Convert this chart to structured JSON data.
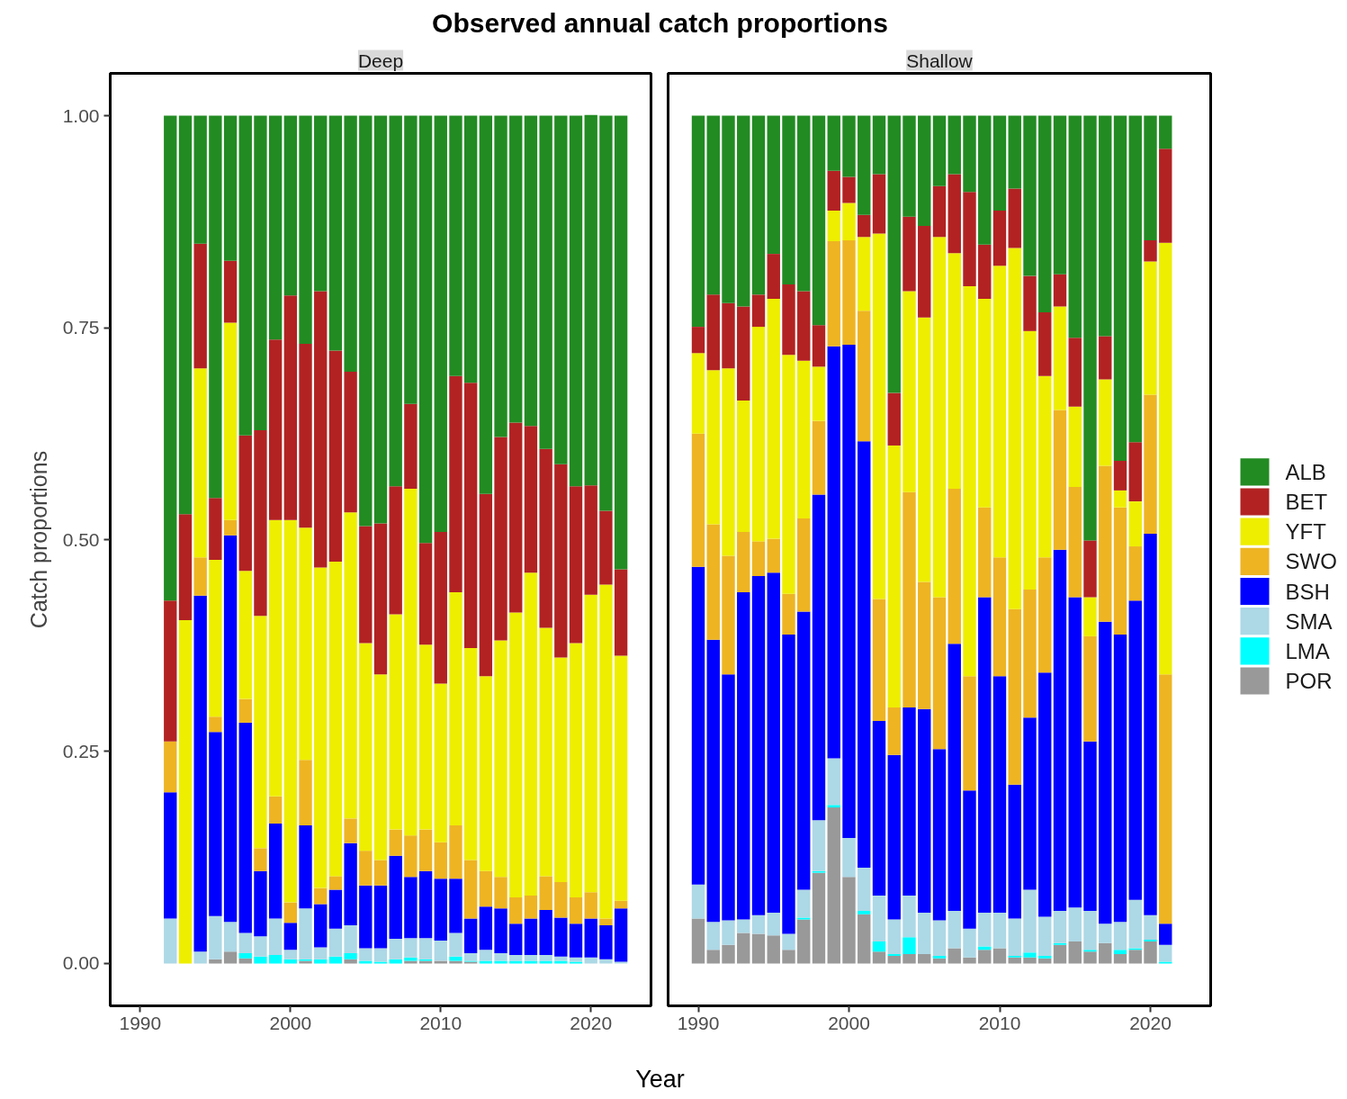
{
  "chart_data": [
    {
      "type": "bar",
      "stacked": true,
      "title": "Observed annual catch proportions",
      "subtitle": "Deep",
      "xlabel": "Year",
      "ylabel": "Catch proportions",
      "legend": "right",
      "x": [
        1992,
        1993,
        1994,
        1995,
        1996,
        1997,
        1998,
        1999,
        2000,
        2001,
        2002,
        2003,
        2004,
        2005,
        2006,
        2007,
        2008,
        2009,
        2010,
        2011,
        2012,
        2013,
        2014,
        2015,
        2016,
        2017,
        2018,
        2019,
        2020,
        2021,
        2022
      ],
      "xlim": [
        1988,
        2024
      ],
      "xticks": [
        1990,
        2000,
        2010,
        2020
      ],
      "ylim": [
        -0.05,
        1.05
      ],
      "yticks": [
        {
          "value": 0,
          "label": "0.00"
        },
        {
          "value": 0.25,
          "label": "0.25"
        },
        {
          "value": 0.5,
          "label": "0.50"
        },
        {
          "value": 0.75,
          "label": "0.75"
        },
        {
          "value": 1,
          "label": "1.00"
        }
      ],
      "series": [
        {
          "name": "POR",
          "color": "#999999",
          "values": [
            0,
            0,
            0,
            0.005,
            0.014,
            0.006,
            0,
            0,
            0,
            0.003,
            0,
            0,
            0.005,
            0,
            0,
            0,
            0.003,
            0.003,
            0.003,
            0.003,
            0.002,
            0,
            0,
            0,
            0,
            0,
            0,
            0,
            0,
            0,
            0
          ]
        },
        {
          "name": "LMA",
          "color": "#00ffff",
          "values": [
            0,
            0,
            0,
            0,
            0,
            0.006,
            0.008,
            0.01,
            0.005,
            0.002,
            0.005,
            0.008,
            0.007,
            0.003,
            0.002,
            0.005,
            0.004,
            0.002,
            0,
            0.005,
            0.001,
            0.003,
            0.003,
            0.003,
            0.003,
            0.003,
            0.003,
            0.002,
            0,
            0,
            0
          ]
        },
        {
          "name": "SMA",
          "color": "#add8e6",
          "values": [
            0.053,
            0,
            0.014,
            0.051,
            0.035,
            0.024,
            0.024,
            0.043,
            0.011,
            0.06,
            0.014,
            0.033,
            0.033,
            0.015,
            0.016,
            0.024,
            0.023,
            0.025,
            0.024,
            0.028,
            0.009,
            0.013,
            0.009,
            0.007,
            0.007,
            0.007,
            0.005,
            0.005,
            0.007,
            0.005,
            0.002
          ]
        },
        {
          "name": "BSH",
          "color": "#0000ff",
          "values": [
            0.149,
            0,
            0.42,
            0.217,
            0.456,
            0.248,
            0.077,
            0.112,
            0.032,
            0.098,
            0.051,
            0.046,
            0.097,
            0.074,
            0.074,
            0.098,
            0.072,
            0.079,
            0.073,
            0.064,
            0.041,
            0.051,
            0.053,
            0.037,
            0.043,
            0.053,
            0.046,
            0.04,
            0.046,
            0.04,
            0.063
          ]
        },
        {
          "name": "SWO",
          "color": "#eeb422",
          "values": [
            0.06,
            0,
            0.045,
            0.018,
            0.018,
            0.028,
            0.027,
            0.032,
            0.024,
            0.077,
            0.019,
            0.016,
            0.029,
            0.041,
            0.03,
            0.031,
            0.049,
            0.049,
            0.043,
            0.063,
            0.069,
            0.042,
            0.037,
            0.031,
            0.027,
            0.04,
            0.042,
            0.031,
            0.031,
            0.008,
            0.009
          ]
        },
        {
          "name": "YFT",
          "color": "#eeee00",
          "values": [
            0,
            0.405,
            0.223,
            0.185,
            0.233,
            0.151,
            0.274,
            0.326,
            0.451,
            0.274,
            0.378,
            0.371,
            0.361,
            0.245,
            0.219,
            0.254,
            0.409,
            0.218,
            0.187,
            0.275,
            0.25,
            0.23,
            0.279,
            0.336,
            0.381,
            0.293,
            0.265,
            0.3,
            0.351,
            0.394,
            0.289
          ]
        },
        {
          "name": "BET",
          "color": "#b22222",
          "values": [
            0.166,
            0.125,
            0.147,
            0.073,
            0.073,
            0.16,
            0.219,
            0.213,
            0.265,
            0.217,
            0.326,
            0.249,
            0.166,
            0.138,
            0.178,
            0.151,
            0.1,
            0.12,
            0.179,
            0.255,
            0.313,
            0.215,
            0.24,
            0.224,
            0.173,
            0.211,
            0.228,
            0.185,
            0.129,
            0.087,
            0.102
          ]
        },
        {
          "name": "ALB",
          "color": "#228b22",
          "values": [
            0.572,
            0.47,
            0.151,
            0.451,
            0.171,
            0.377,
            0.371,
            0.264,
            0.212,
            0.269,
            0.207,
            0.277,
            0.302,
            0.484,
            0.481,
            0.437,
            0.34,
            0.504,
            0.491,
            0.307,
            0.315,
            0.446,
            0.379,
            0.362,
            0.366,
            0.393,
            0.411,
            0.437,
            0.437,
            0.466,
            0.535
          ]
        }
      ]
    },
    {
      "type": "bar",
      "stacked": true,
      "subtitle": "Shallow",
      "tick_labels": "x",
      "x": [
        1990,
        1991,
        1992,
        1993,
        1994,
        1995,
        1996,
        1997,
        1998,
        1999,
        2000,
        2001,
        2002,
        2003,
        2004,
        2005,
        2006,
        2007,
        2008,
        2009,
        2010,
        2011,
        2012,
        2013,
        2014,
        2015,
        2016,
        2017,
        2018,
        2019,
        2020,
        2021
      ],
      "xlim": [
        1988,
        2024
      ],
      "xticks": [
        1990,
        2000,
        2010,
        2020
      ],
      "ylim": [
        -0.05,
        1.05
      ],
      "series": [
        {
          "color": "#999999",
          "values": [
            0.053,
            0.016,
            0.022,
            0.036,
            0.035,
            0.033,
            0.016,
            0.052,
            0.107,
            0.184,
            0.102,
            0.058,
            0.014,
            0.009,
            0.011,
            0.011,
            0.006,
            0.018,
            0.007,
            0.016,
            0.018,
            0.007,
            0.007,
            0.006,
            0.022,
            0.026,
            0.014,
            0.024,
            0.011,
            0.016,
            0.026,
            0
          ]
        },
        {
          "color": "#00ffff",
          "values": [
            0,
            0,
            0,
            0,
            0,
            0,
            0,
            0.002,
            0.002,
            0.003,
            0,
            0.004,
            0.012,
            0.002,
            0.02,
            0,
            0.003,
            0,
            0,
            0.004,
            0,
            0.002,
            0.006,
            0.003,
            0.002,
            0,
            0.002,
            0,
            0.005,
            0.002,
            0.002,
            0.002
          ]
        },
        {
          "color": "#add8e6",
          "values": [
            0.04,
            0.033,
            0.029,
            0.016,
            0.022,
            0.027,
            0.019,
            0.033,
            0.06,
            0.055,
            0.046,
            0.051,
            0.054,
            0.041,
            0.049,
            0.049,
            0.042,
            0.044,
            0.034,
            0.04,
            0.042,
            0.044,
            0.074,
            0.046,
            0.038,
            0.04,
            0.046,
            0.023,
            0.033,
            0.057,
            0.029,
            0.02
          ]
        },
        {
          "color": "#0000ff",
          "values": [
            0.375,
            0.333,
            0.29,
            0.386,
            0.4,
            0.401,
            0.353,
            0.328,
            0.384,
            0.486,
            0.582,
            0.503,
            0.206,
            0.194,
            0.222,
            0.24,
            0.202,
            0.315,
            0.163,
            0.372,
            0.279,
            0.158,
            0.203,
            0.288,
            0.426,
            0.366,
            0.2,
            0.356,
            0.339,
            0.353,
            0.45,
            0.025
          ]
        },
        {
          "color": "#eeb422",
          "values": [
            0.157,
            0.136,
            0.14,
            0.071,
            0.041,
            0.04,
            0.048,
            0.11,
            0.087,
            0.124,
            0.123,
            0.154,
            0.144,
            0.056,
            0.254,
            0.15,
            0.179,
            0.183,
            0.135,
            0.106,
            0.14,
            0.207,
            0.151,
            0.136,
            0.165,
            0.13,
            0.124,
            0.184,
            0.15,
            0.064,
            0.164,
            0.294
          ]
        },
        {
          "color": "#eeee00",
          "values": [
            0.095,
            0.182,
            0.221,
            0.155,
            0.253,
            0.283,
            0.282,
            0.186,
            0.064,
            0.036,
            0.044,
            0.087,
            0.431,
            0.309,
            0.237,
            0.312,
            0.425,
            0.278,
            0.46,
            0.246,
            0.344,
            0.426,
            0.305,
            0.214,
            0.122,
            0.095,
            0.046,
            0.102,
            0.02,
            0.053,
            0.157,
            0.509
          ]
        },
        {
          "color": "#b22222",
          "values": [
            0.031,
            0.089,
            0.077,
            0.111,
            0.038,
            0.053,
            0.083,
            0.082,
            0.049,
            0.047,
            0.031,
            0.026,
            0.07,
            0.062,
            0.088,
            0.108,
            0.06,
            0.093,
            0.111,
            0.064,
            0.065,
            0.07,
            0.065,
            0.075,
            0.038,
            0.081,
            0.067,
            0.051,
            0.035,
            0.07,
            0.025,
            0.111
          ]
        },
        {
          "color": "#228b22",
          "values": [
            0.249,
            0.211,
            0.221,
            0.225,
            0.211,
            0.163,
            0.199,
            0.207,
            0.247,
            0.065,
            0.072,
            0.117,
            0.069,
            0.327,
            0.119,
            0.13,
            0.083,
            0.069,
            0.09,
            0.152,
            0.112,
            0.086,
            0.189,
            0.232,
            0.187,
            0.262,
            0.501,
            0.26,
            0.407,
            0.385,
            0.147,
            0.039
          ]
        }
      ]
    }
  ]
}
